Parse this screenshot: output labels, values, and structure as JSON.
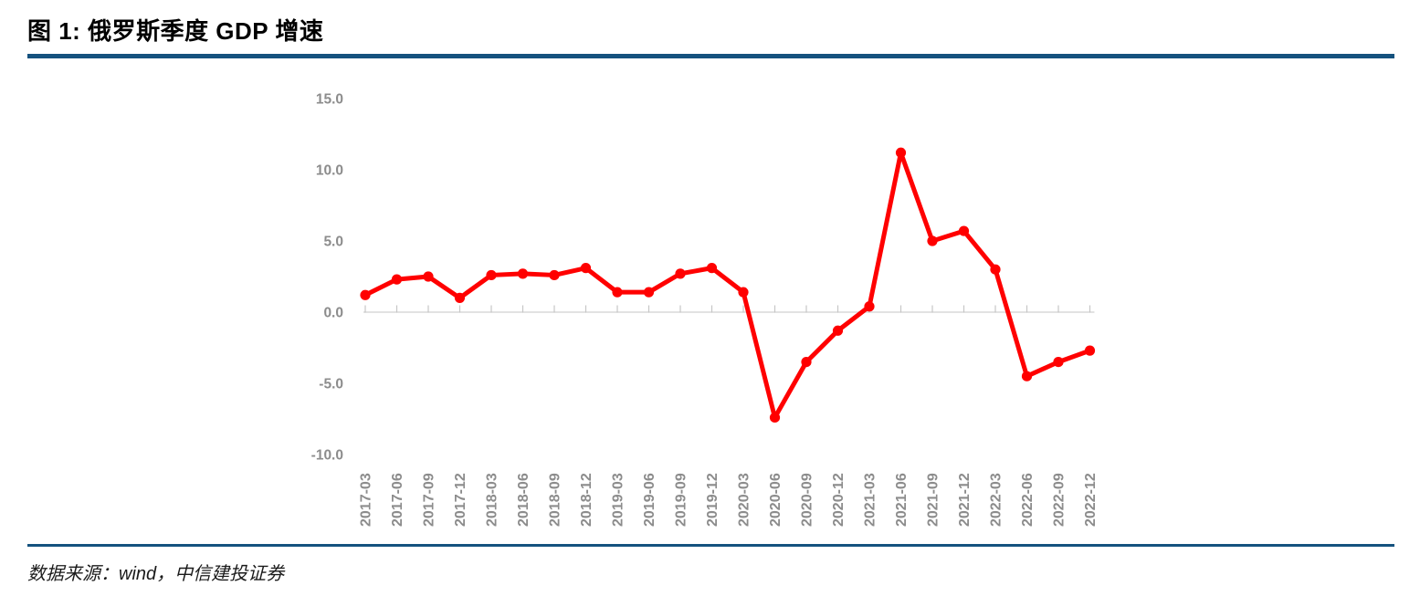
{
  "figure": {
    "title": "图 1: 俄罗斯季度 GDP 增速",
    "source": "数据来源：wind，中信建投证券"
  },
  "colors": {
    "rule_blue": "#15527E",
    "series_red": "#FF0000",
    "axis_line_gray": "#D9D9D9",
    "tick_gray": "#C6C6C6",
    "label_gray": "#8C8C8C"
  },
  "chart_data": {
    "type": "line",
    "title": "图 1: 俄罗斯季度 GDP 增速",
    "categories": [
      "2017-03",
      "2017-06",
      "2017-09",
      "2017-12",
      "2018-03",
      "2018-06",
      "2018-09",
      "2018-12",
      "2019-03",
      "2019-06",
      "2019-09",
      "2019-12",
      "2020-03",
      "2020-06",
      "2020-09",
      "2020-12",
      "2021-03",
      "2021-06",
      "2021-09",
      "2021-12",
      "2022-03",
      "2022-06",
      "2022-09",
      "2022-12"
    ],
    "values": [
      1.2,
      2.3,
      2.5,
      1.0,
      2.6,
      2.7,
      2.6,
      3.1,
      1.4,
      1.4,
      2.7,
      3.1,
      1.4,
      -7.4,
      -3.5,
      -1.3,
      0.4,
      11.2,
      5.0,
      5.7,
      3.0,
      -4.5,
      -3.5,
      -2.7
    ],
    "y_tick_labels": [
      "15.0",
      "10.0",
      "5.0",
      "0.0",
      "-5.0",
      "-10.0"
    ],
    "y_tick_values": [
      15,
      10,
      5,
      0,
      -5,
      -10
    ],
    "ylim": [
      -10,
      15
    ],
    "xlabel": "",
    "ylabel": "",
    "grid": "none",
    "legend": "none",
    "marker": "circle",
    "x_label_rotation": -90
  }
}
